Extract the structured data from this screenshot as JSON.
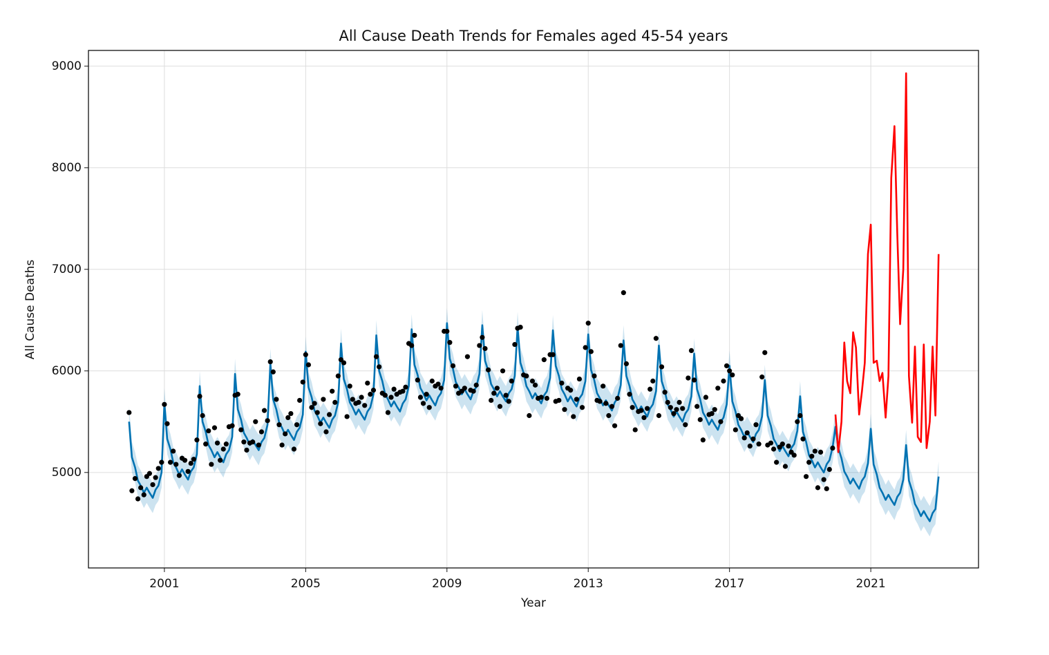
{
  "chart_data": {
    "type": "line",
    "title": "All Cause Death Trends for Females aged 45-54 years",
    "x_label": "Year",
    "y_label": "All Cause Deaths",
    "xlim": [
      1998.85,
      2024.05
    ],
    "ylim": [
      4060,
      9155
    ],
    "xticks": [
      2001,
      2005,
      2009,
      2013,
      2017,
      2021
    ],
    "yticks": [
      5000,
      6000,
      7000,
      8000,
      9000
    ],
    "grid": true,
    "x": [
      2000,
      2000.08,
      2000.17,
      2000.25,
      2000.33,
      2000.42,
      2000.5,
      2000.58,
      2000.67,
      2000.75,
      2000.83,
      2000.92,
      2001,
      2001.08,
      2001.17,
      2001.25,
      2001.33,
      2001.42,
      2001.5,
      2001.58,
      2001.67,
      2001.75,
      2001.83,
      2001.92,
      2002,
      2002.08,
      2002.17,
      2002.25,
      2002.33,
      2002.42,
      2002.5,
      2002.58,
      2002.67,
      2002.75,
      2002.83,
      2002.92,
      2003,
      2003.08,
      2003.17,
      2003.25,
      2003.33,
      2003.42,
      2003.5,
      2003.58,
      2003.67,
      2003.75,
      2003.83,
      2003.92,
      2004,
      2004.08,
      2004.17,
      2004.25,
      2004.33,
      2004.42,
      2004.5,
      2004.58,
      2004.67,
      2004.75,
      2004.83,
      2004.92,
      2005,
      2005.08,
      2005.17,
      2005.25,
      2005.33,
      2005.42,
      2005.5,
      2005.58,
      2005.67,
      2005.75,
      2005.83,
      2005.92,
      2006,
      2006.08,
      2006.17,
      2006.25,
      2006.33,
      2006.42,
      2006.5,
      2006.58,
      2006.67,
      2006.75,
      2006.83,
      2006.92,
      2007,
      2007.08,
      2007.17,
      2007.25,
      2007.33,
      2007.42,
      2007.5,
      2007.58,
      2007.67,
      2007.75,
      2007.83,
      2007.92,
      2008,
      2008.08,
      2008.17,
      2008.25,
      2008.33,
      2008.42,
      2008.5,
      2008.58,
      2008.67,
      2008.75,
      2008.83,
      2008.92,
      2009,
      2009.08,
      2009.17,
      2009.25,
      2009.33,
      2009.42,
      2009.5,
      2009.58,
      2009.67,
      2009.75,
      2009.83,
      2009.92,
      2010,
      2010.08,
      2010.17,
      2010.25,
      2010.33,
      2010.42,
      2010.5,
      2010.58,
      2010.67,
      2010.75,
      2010.83,
      2010.92,
      2011,
      2011.08,
      2011.17,
      2011.25,
      2011.33,
      2011.42,
      2011.5,
      2011.58,
      2011.67,
      2011.75,
      2011.83,
      2011.92,
      2012,
      2012.08,
      2012.17,
      2012.25,
      2012.33,
      2012.42,
      2012.5,
      2012.58,
      2012.67,
      2012.75,
      2012.83,
      2012.92,
      2013,
      2013.08,
      2013.17,
      2013.25,
      2013.33,
      2013.42,
      2013.5,
      2013.58,
      2013.67,
      2013.75,
      2013.83,
      2013.92,
      2014,
      2014.08,
      2014.17,
      2014.25,
      2014.33,
      2014.42,
      2014.5,
      2014.58,
      2014.67,
      2014.75,
      2014.83,
      2014.92,
      2015,
      2015.08,
      2015.17,
      2015.25,
      2015.33,
      2015.42,
      2015.5,
      2015.58,
      2015.67,
      2015.75,
      2015.83,
      2015.92,
      2016,
      2016.08,
      2016.17,
      2016.25,
      2016.33,
      2016.42,
      2016.5,
      2016.58,
      2016.67,
      2016.75,
      2016.83,
      2016.92,
      2017,
      2017.08,
      2017.17,
      2017.25,
      2017.33,
      2017.42,
      2017.5,
      2017.58,
      2017.67,
      2017.75,
      2017.83,
      2017.92,
      2018,
      2018.08,
      2018.17,
      2018.25,
      2018.33,
      2018.42,
      2018.5,
      2018.58,
      2018.67,
      2018.75,
      2018.83,
      2018.92,
      2019,
      2019.08,
      2019.17,
      2019.25,
      2019.33,
      2019.42,
      2019.5,
      2019.58,
      2019.67,
      2019.75,
      2019.83,
      2019.92,
      2020,
      2020.08,
      2020.17,
      2020.25,
      2020.33,
      2020.42,
      2020.5,
      2020.58,
      2020.67,
      2020.75,
      2020.83,
      2020.92,
      2021,
      2021.08,
      2021.17,
      2021.25,
      2021.33,
      2021.42,
      2021.5,
      2021.58,
      2021.67,
      2021.75,
      2021.83,
      2021.92,
      2022,
      2022.08,
      2022.17,
      2022.25,
      2022.33,
      2022.42,
      2022.5,
      2022.58,
      2022.67,
      2022.75,
      2022.83,
      2022.92
    ],
    "series": [
      {
        "kind": "forecast",
        "color": "#0072B2",
        "uncertainty": 150,
        "values": [
          5500,
          5150,
          5050,
          4920,
          4870,
          4800,
          4850,
          4800,
          4750,
          4830,
          4870,
          5000,
          5680,
          5330,
          5230,
          5100,
          5050,
          4980,
          5030,
          4980,
          4930,
          5010,
          5050,
          5180,
          5850,
          5500,
          5400,
          5270,
          5220,
          5150,
          5200,
          5150,
          5100,
          5180,
          5220,
          5350,
          5970,
          5620,
          5520,
          5390,
          5340,
          5270,
          5320,
          5270,
          5220,
          5300,
          5340,
          5470,
          6070,
          5720,
          5620,
          5490,
          5440,
          5370,
          5420,
          5370,
          5320,
          5400,
          5440,
          5570,
          6190,
          5840,
          5740,
          5610,
          5560,
          5490,
          5540,
          5490,
          5440,
          5520,
          5560,
          5690,
          6270,
          5920,
          5820,
          5690,
          5640,
          5570,
          5620,
          5570,
          5520,
          5600,
          5640,
          5770,
          6350,
          6000,
          5900,
          5770,
          5720,
          5650,
          5700,
          5650,
          5600,
          5680,
          5720,
          5850,
          6410,
          6060,
          5960,
          5830,
          5780,
          5710,
          5760,
          5710,
          5660,
          5740,
          5780,
          5910,
          6470,
          6120,
          6020,
          5890,
          5840,
          5770,
          5820,
          5770,
          5720,
          5800,
          5840,
          5970,
          6450,
          6100,
          6000,
          5870,
          5820,
          5750,
          5800,
          5750,
          5700,
          5780,
          5820,
          5950,
          6430,
          6080,
          5980,
          5850,
          5800,
          5730,
          5780,
          5730,
          5680,
          5760,
          5800,
          5930,
          6400,
          6050,
          5950,
          5820,
          5770,
          5700,
          5750,
          5700,
          5650,
          5730,
          5770,
          5900,
          6360,
          6010,
          5910,
          5780,
          5730,
          5660,
          5710,
          5660,
          5610,
          5690,
          5730,
          5860,
          6300,
          5950,
          5850,
          5720,
          5670,
          5600,
          5650,
          5600,
          5550,
          5630,
          5670,
          5800,
          6250,
          5900,
          5800,
          5670,
          5620,
          5550,
          5600,
          5550,
          5500,
          5580,
          5620,
          5750,
          6170,
          5820,
          5720,
          5590,
          5540,
          5470,
          5520,
          5470,
          5420,
          5500,
          5540,
          5670,
          6050,
          5700,
          5600,
          5470,
          5420,
          5350,
          5400,
          5350,
          5300,
          5380,
          5420,
          5550,
          5910,
          5560,
          5460,
          5330,
          5280,
          5210,
          5260,
          5210,
          5160,
          5240,
          5280,
          5410,
          5750,
          5400,
          5300,
          5170,
          5120,
          5050,
          5100,
          5050,
          5000,
          5080,
          5120,
          5250,
          5450,
          5240,
          5140,
          5010,
          4960,
          4890,
          4940,
          4890,
          4840,
          4920,
          4960,
          5090,
          5430,
          5080,
          4980,
          4850,
          4800,
          4730,
          4780,
          4730,
          4680,
          4760,
          4800,
          4930,
          5270,
          4920,
          4820,
          4690,
          4640,
          4570,
          4620,
          4570,
          4520,
          4600,
          4640,
          4960
        ]
      },
      {
        "kind": "observed",
        "color": "#000000",
        "values": [
          5590,
          4820,
          4940,
          4740,
          4850,
          4780,
          4960,
          4990,
          4880,
          4950,
          5040,
          5100,
          5670,
          5480,
          5100,
          5210,
          5080,
          4970,
          5140,
          5120,
          5010,
          5090,
          5130,
          5320,
          5750,
          5560,
          5280,
          5410,
          5080,
          5440,
          5290,
          5120,
          5230,
          5280,
          5450,
          5460,
          5760,
          5770,
          5420,
          5300,
          5220,
          5290,
          5300,
          5500,
          5270,
          5400,
          5610,
          5510,
          6090,
          5990,
          5720,
          5470,
          5270,
          5380,
          5540,
          5580,
          5230,
          5470,
          5710,
          5890,
          6160,
          6060,
          5640,
          5680,
          5590,
          5480,
          5720,
          5400,
          5570,
          5800,
          5690,
          5950,
          6110,
          6080,
          5550,
          5850,
          5720,
          5680,
          5690,
          5740,
          5660,
          5880,
          5770,
          5810,
          6140,
          6040,
          5780,
          5760,
          5590,
          5740,
          5820,
          5770,
          5790,
          5800,
          5840,
          6270,
          6250,
          6350,
          5910,
          5740,
          5680,
          5770,
          5640,
          5900,
          5850,
          5870,
          5830,
          6390,
          6390,
          6280,
          6050,
          5850,
          5780,
          5800,
          5830,
          6140,
          5810,
          5800,
          5860,
          6250,
          6330,
          6220,
          6010,
          5710,
          5780,
          5830,
          5650,
          6000,
          5760,
          5700,
          5900,
          6260,
          6420,
          6430,
          5960,
          5950,
          5560,
          5900,
          5860,
          5730,
          5740,
          6110,
          5730,
          6160,
          6160,
          5700,
          5710,
          5880,
          5620,
          5830,
          5810,
          5550,
          5720,
          5920,
          5640,
          6230,
          6470,
          6190,
          5950,
          5710,
          5700,
          5850,
          5680,
          5560,
          5650,
          5460,
          5730,
          6250,
          6770,
          6070,
          5770,
          5640,
          5420,
          5600,
          5610,
          5540,
          5630,
          5820,
          5900,
          6320,
          5560,
          6040,
          5790,
          5690,
          5640,
          5580,
          5620,
          5690,
          5630,
          5470,
          5930,
          6200,
          5910,
          5650,
          5520,
          5320,
          5740,
          5570,
          5580,
          5620,
          5830,
          5500,
          5900,
          6050,
          6000,
          5960,
          5420,
          5560,
          5530,
          5340,
          5390,
          5260,
          5330,
          5470,
          5280,
          5940,
          6180,
          5270,
          5290,
          5230,
          5100,
          5250,
          5280,
          5060,
          5260,
          5200,
          5170,
          5500,
          5560,
          5330,
          4960,
          5100,
          5160,
          5210,
          4850,
          5200,
          4930,
          4840,
          5030,
          5240,
          null,
          null,
          null,
          null,
          null,
          null,
          null,
          null,
          null,
          null,
          null,
          null,
          null,
          null,
          null,
          null,
          null,
          null,
          null,
          null,
          null,
          null,
          null,
          null,
          null,
          null,
          null,
          null,
          null,
          null,
          null,
          null,
          null,
          null,
          null,
          null
        ]
      },
      {
        "kind": "actual",
        "color": "#ff0000",
        "values": [
          null,
          null,
          null,
          null,
          null,
          null,
          null,
          null,
          null,
          null,
          null,
          null,
          null,
          null,
          null,
          null,
          null,
          null,
          null,
          null,
          null,
          null,
          null,
          null,
          null,
          null,
          null,
          null,
          null,
          null,
          null,
          null,
          null,
          null,
          null,
          null,
          null,
          null,
          null,
          null,
          null,
          null,
          null,
          null,
          null,
          null,
          null,
          null,
          null,
          null,
          null,
          null,
          null,
          null,
          null,
          null,
          null,
          null,
          null,
          null,
          null,
          null,
          null,
          null,
          null,
          null,
          null,
          null,
          null,
          null,
          null,
          null,
          null,
          null,
          null,
          null,
          null,
          null,
          null,
          null,
          null,
          null,
          null,
          null,
          null,
          null,
          null,
          null,
          null,
          null,
          null,
          null,
          null,
          null,
          null,
          null,
          null,
          null,
          null,
          null,
          null,
          null,
          null,
          null,
          null,
          null,
          null,
          null,
          null,
          null,
          null,
          null,
          null,
          null,
          null,
          null,
          null,
          null,
          null,
          null,
          null,
          null,
          null,
          null,
          null,
          null,
          null,
          null,
          null,
          null,
          null,
          null,
          null,
          null,
          null,
          null,
          null,
          null,
          null,
          null,
          null,
          null,
          null,
          null,
          null,
          null,
          null,
          null,
          null,
          null,
          null,
          null,
          null,
          null,
          null,
          null,
          null,
          null,
          null,
          null,
          null,
          null,
          null,
          null,
          null,
          null,
          null,
          null,
          null,
          null,
          null,
          null,
          null,
          null,
          null,
          null,
          null,
          null,
          null,
          null,
          null,
          null,
          null,
          null,
          null,
          null,
          null,
          null,
          null,
          null,
          null,
          null,
          null,
          null,
          null,
          null,
          null,
          null,
          null,
          null,
          null,
          null,
          null,
          null,
          null,
          null,
          null,
          null,
          null,
          null,
          null,
          null,
          null,
          null,
          null,
          null,
          null,
          null,
          null,
          null,
          null,
          null,
          null,
          null,
          null,
          null,
          null,
          null,
          null,
          null,
          null,
          null,
          null,
          null,
          null,
          null,
          null,
          null,
          null,
          null,
          5570,
          5200,
          5500,
          6280,
          5900,
          5780,
          6380,
          6230,
          5570,
          5800,
          6080,
          7150,
          7440,
          6080,
          6100,
          5900,
          5980,
          5540,
          5950,
          7900,
          8410,
          7350,
          6460,
          7000,
          8930,
          5950,
          5490,
          6240,
          5350,
          5300,
          6260,
          5240,
          5500,
          6240,
          5560,
          7150
        ]
      }
    ]
  }
}
